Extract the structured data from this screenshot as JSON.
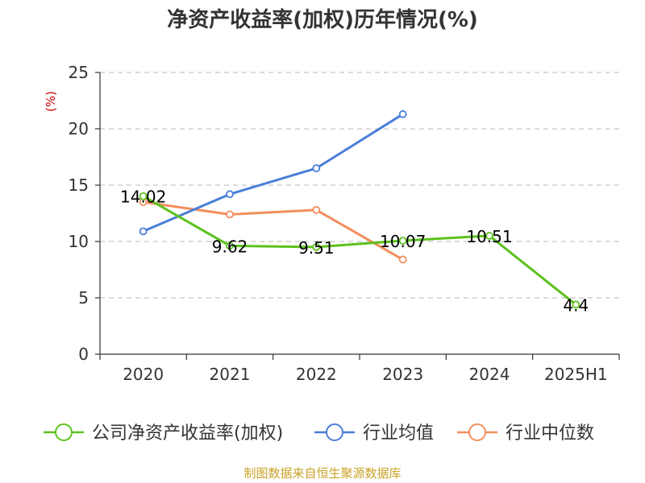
{
  "chart_data": {
    "type": "line",
    "title": "净资产收益率(加权)历年情况(%)",
    "ylabel": "(%)",
    "categories": [
      "2020",
      "2021",
      "2022",
      "2023",
      "2024",
      "2025H1"
    ],
    "ylim": [
      0,
      25
    ],
    "yticks": [
      0,
      5,
      10,
      15,
      20,
      25
    ],
    "grid": true,
    "legend_position": "bottom",
    "series": [
      {
        "name": "公司净资产收益率(加权)",
        "color": "#5cc21e",
        "values": [
          14.02,
          9.62,
          9.51,
          10.07,
          10.51,
          4.4
        ],
        "labels": [
          "14.02",
          "9.62",
          "9.51",
          "10.07",
          "10.51",
          "4.4"
        ]
      },
      {
        "name": "行业均值",
        "color": "#4a7fd8",
        "values": [
          10.9,
          14.2,
          16.5,
          21.3,
          null,
          null
        ]
      },
      {
        "name": "行业中位数",
        "color": "#f28e5c",
        "values": [
          13.5,
          12.4,
          12.8,
          8.4,
          null,
          null
        ]
      }
    ]
  },
  "footer": {
    "source": "制图数据来自恒生聚源数据库"
  }
}
